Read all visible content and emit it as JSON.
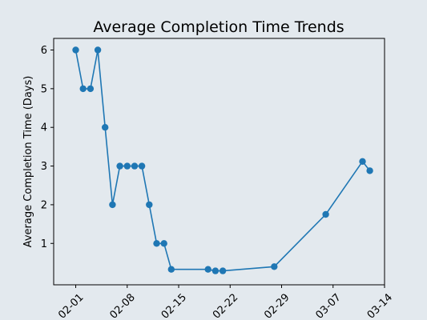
{
  "chart_data": {
    "type": "line",
    "title": "Average Completion Time Trends",
    "xlabel": "",
    "ylabel": "Average Completion Time (Days)",
    "color": "#1f77b4",
    "background": "#e3e9ee",
    "grid": false,
    "x_is_date": true,
    "xlim": [
      "2024-01-29",
      "2024-03-14"
    ],
    "ylim": [
      -0.07,
      6.3
    ],
    "xticks": [
      {
        "date": "2024-02-01",
        "label": "02-01"
      },
      {
        "date": "2024-02-08",
        "label": "02-08"
      },
      {
        "date": "2024-02-15",
        "label": "02-15"
      },
      {
        "date": "2024-02-22",
        "label": "02-22"
      },
      {
        "date": "2024-02-29",
        "label": "02-29"
      },
      {
        "date": "2024-03-07",
        "label": "03-07"
      },
      {
        "date": "2024-03-14",
        "label": "03-14"
      }
    ],
    "yticks": [
      {
        "value": 1,
        "label": "1"
      },
      {
        "value": 2,
        "label": "2"
      },
      {
        "value": 3,
        "label": "3"
      },
      {
        "value": 4,
        "label": "4"
      },
      {
        "value": 5,
        "label": "5"
      },
      {
        "value": 6,
        "label": "6"
      }
    ],
    "series": [
      {
        "points": [
          {
            "x": "2024-02-01",
            "y": 6
          },
          {
            "x": "2024-02-02",
            "y": 5
          },
          {
            "x": "2024-02-03",
            "y": 5
          },
          {
            "x": "2024-02-04",
            "y": 6
          },
          {
            "x": "2024-02-05",
            "y": 4
          },
          {
            "x": "2024-02-06",
            "y": 2
          },
          {
            "x": "2024-02-07",
            "y": 3
          },
          {
            "x": "2024-02-08",
            "y": 3
          },
          {
            "x": "2024-02-09",
            "y": 3
          },
          {
            "x": "2024-02-10",
            "y": 3
          },
          {
            "x": "2024-02-11",
            "y": 2
          },
          {
            "x": "2024-02-12",
            "y": 1
          },
          {
            "x": "2024-02-13",
            "y": 1
          },
          {
            "x": "2024-02-14",
            "y": 0.33
          },
          {
            "x": "2024-02-19",
            "y": 0.33
          },
          {
            "x": "2024-02-20",
            "y": 0.29
          },
          {
            "x": "2024-02-21",
            "y": 0.29
          },
          {
            "x": "2024-02-28",
            "y": 0.4
          },
          {
            "x": "2024-03-06",
            "y": 1.75
          },
          {
            "x": "2024-03-11",
            "y": 3.12
          },
          {
            "x": "2024-03-12",
            "y": 2.88
          }
        ]
      }
    ]
  }
}
